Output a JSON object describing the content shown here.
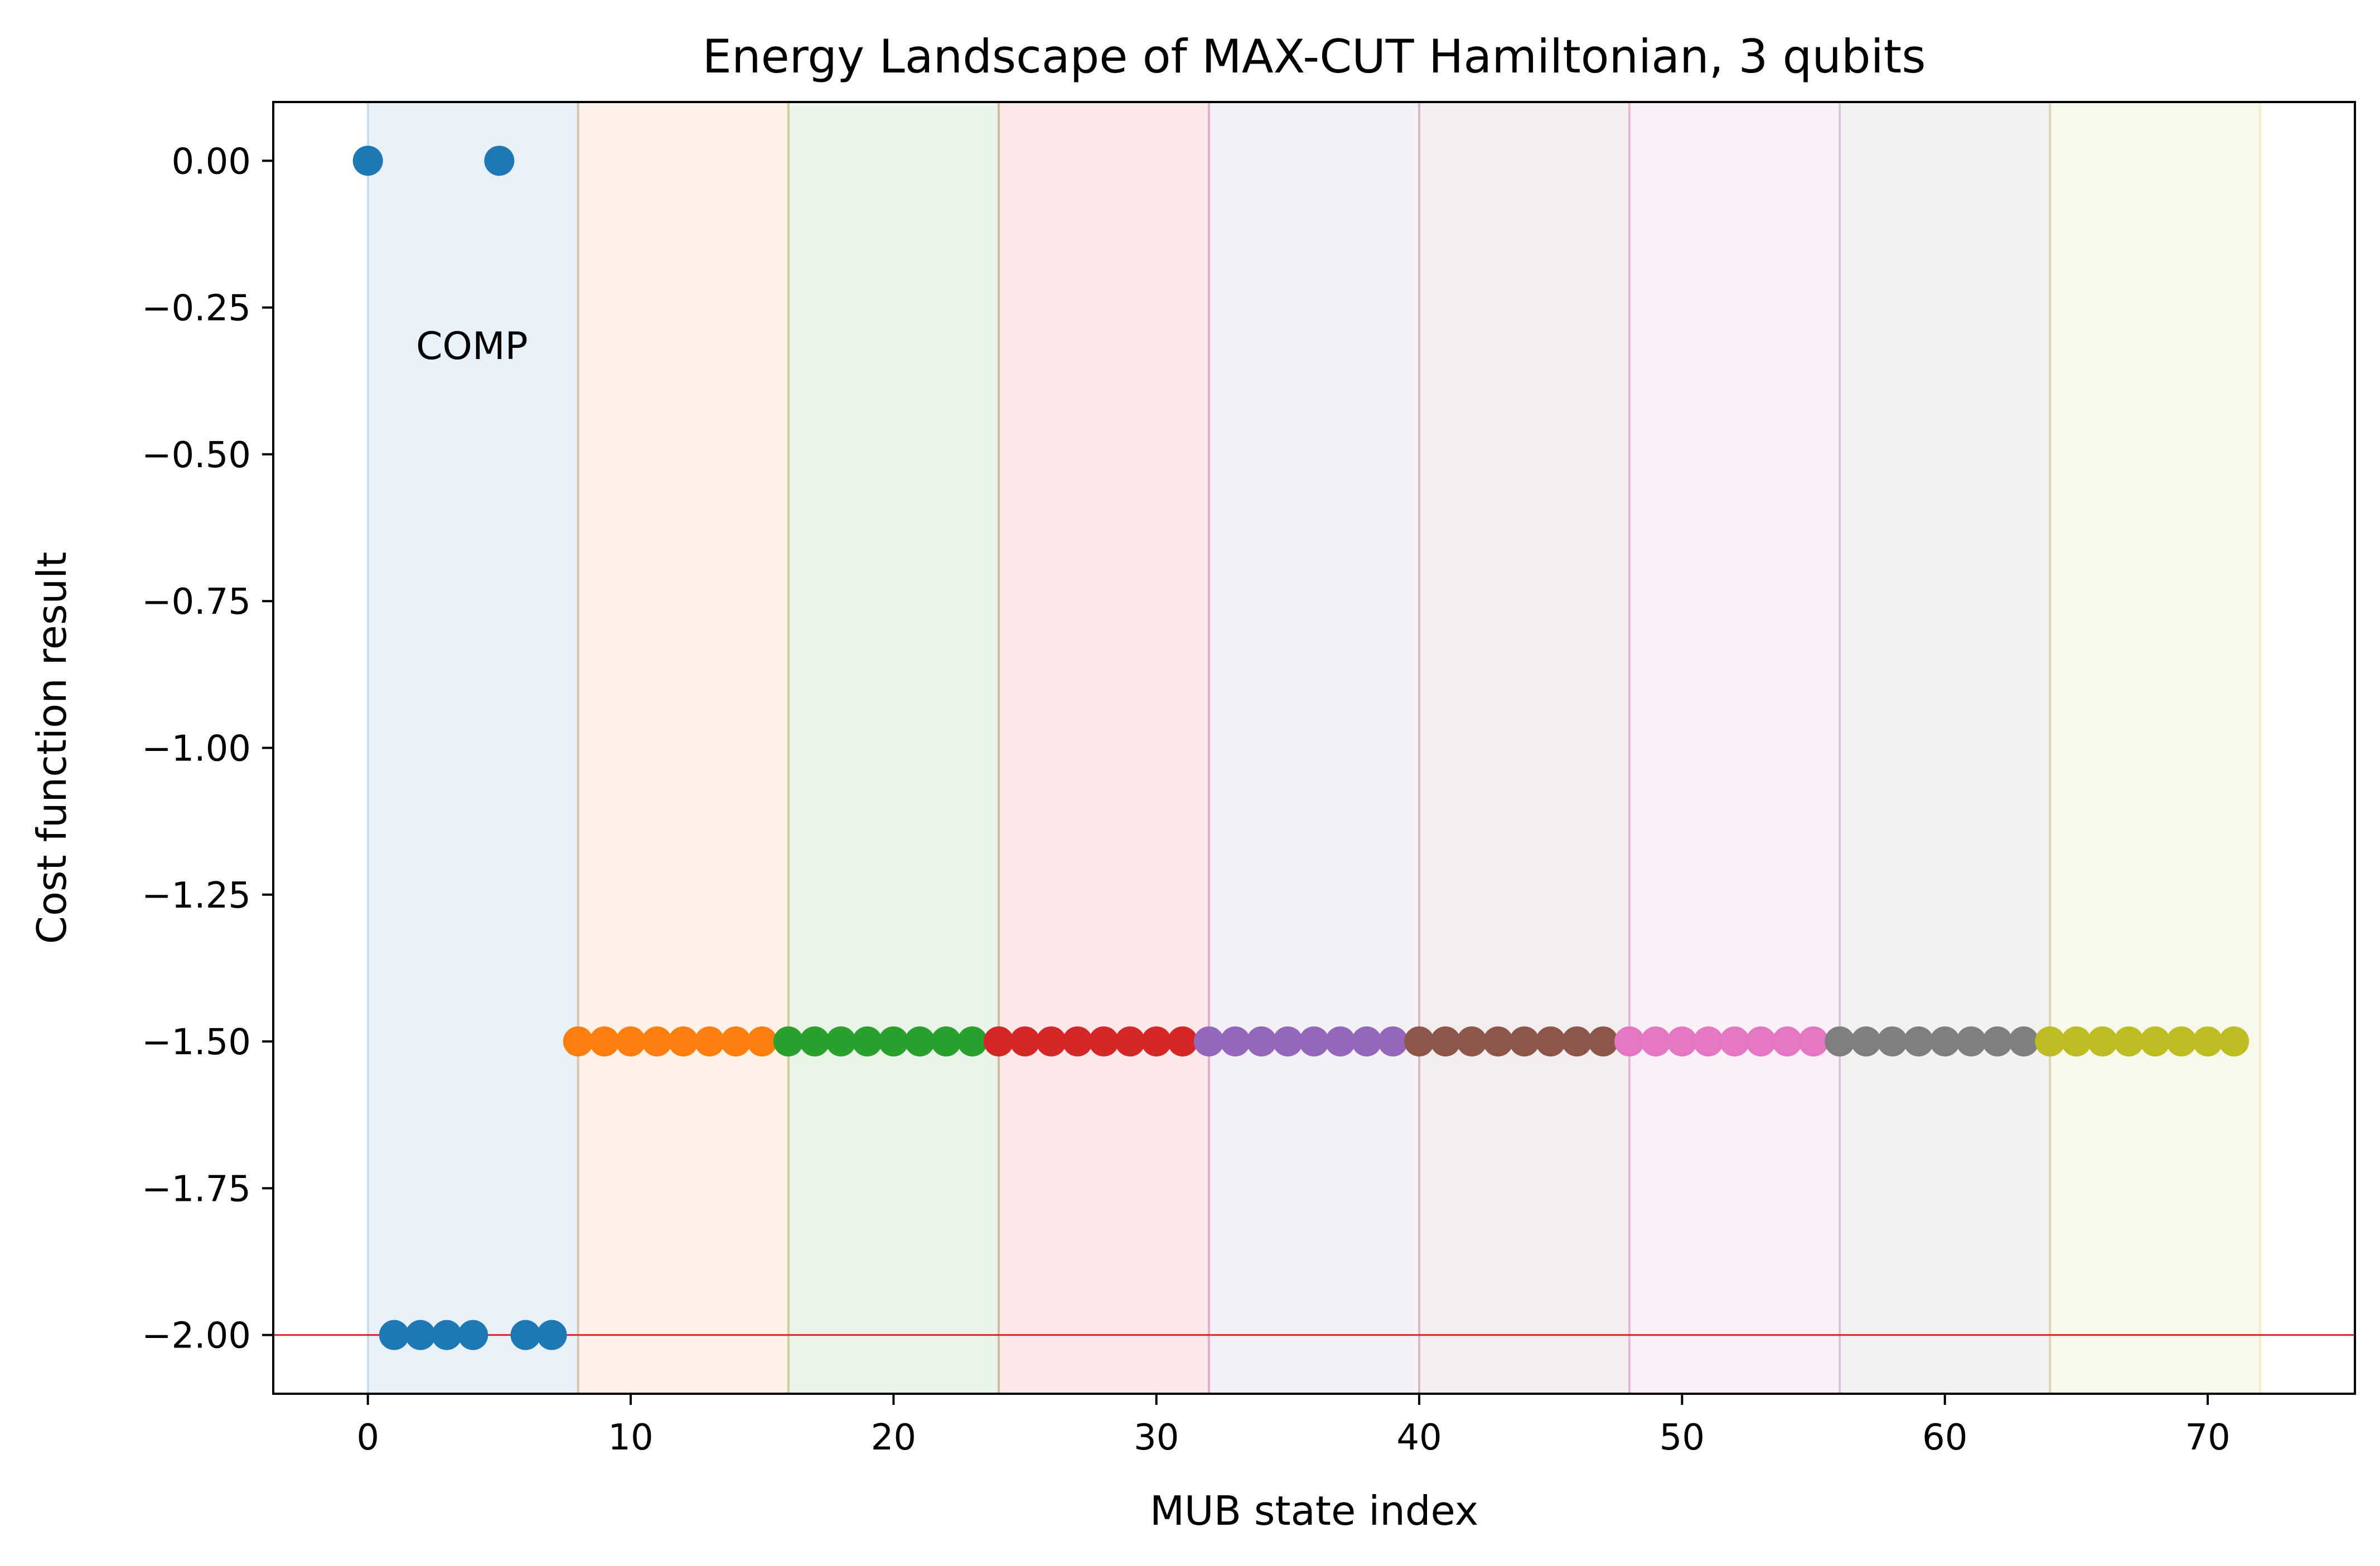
{
  "chart_data": {
    "type": "scatter",
    "title": "Energy Landscape of MAX-CUT Hamiltonian, 3 qubits",
    "xlabel": "MUB state index",
    "ylabel": "Cost function result",
    "xlim": [
      -3.6,
      75.6
    ],
    "ylim": [
      -2.1,
      0.1
    ],
    "xticks": [
      0,
      10,
      20,
      30,
      40,
      50,
      60,
      70
    ],
    "xtick_labels": [
      "0",
      "10",
      "20",
      "30",
      "40",
      "50",
      "60",
      "70"
    ],
    "yticks": [
      0.0,
      -0.25,
      -0.5,
      -0.75,
      -1.0,
      -1.25,
      -1.5,
      -1.75,
      -2.0
    ],
    "ytick_labels": [
      "0.00",
      "−0.25",
      "−0.50",
      "−0.75",
      "−1.00",
      "−1.25",
      "−1.50",
      "−1.75",
      "−2.00"
    ],
    "grid": false,
    "reference_line": {
      "y": -2.0,
      "color": "#d62728"
    },
    "annotations": [
      {
        "text": "COMP",
        "x": 2.0,
        "y": -0.315
      }
    ],
    "bands": [
      {
        "x0": 0,
        "x1": 8,
        "color": "#1f77b4"
      },
      {
        "x0": 8,
        "x1": 16,
        "color": "#ff7f0e"
      },
      {
        "x0": 16,
        "x1": 24,
        "color": "#2ca02c"
      },
      {
        "x0": 24,
        "x1": 32,
        "color": "#d62728"
      },
      {
        "x0": 32,
        "x1": 40,
        "color": "#9467bd"
      },
      {
        "x0": 40,
        "x1": 48,
        "color": "#8c564b"
      },
      {
        "x0": 48,
        "x1": 56,
        "color": "#e377c2"
      },
      {
        "x0": 56,
        "x1": 64,
        "color": "#7f7f7f"
      },
      {
        "x0": 64,
        "x1": 72,
        "color": "#bcbd22"
      }
    ],
    "series": [
      {
        "color": "#1f77b4",
        "x": [
          0,
          1,
          2,
          3,
          4,
          5,
          6,
          7
        ],
        "y": [
          0.0,
          -2.0,
          -2.0,
          -2.0,
          -2.0,
          0.0,
          -2.0,
          -2.0
        ]
      },
      {
        "color": "#ff7f0e",
        "x": [
          8,
          9,
          10,
          11,
          12,
          13,
          14,
          15
        ],
        "y": [
          -1.5,
          -1.5,
          -1.5,
          -1.5,
          -1.5,
          -1.5,
          -1.5,
          -1.5
        ]
      },
      {
        "color": "#2ca02c",
        "x": [
          16,
          17,
          18,
          19,
          20,
          21,
          22,
          23
        ],
        "y": [
          -1.5,
          -1.5,
          -1.5,
          -1.5,
          -1.5,
          -1.5,
          -1.5,
          -1.5
        ]
      },
      {
        "color": "#d62728",
        "x": [
          24,
          25,
          26,
          27,
          28,
          29,
          30,
          31
        ],
        "y": [
          -1.5,
          -1.5,
          -1.5,
          -1.5,
          -1.5,
          -1.5,
          -1.5,
          -1.5
        ]
      },
      {
        "color": "#9467bd",
        "x": [
          32,
          33,
          34,
          35,
          36,
          37,
          38,
          39
        ],
        "y": [
          -1.5,
          -1.5,
          -1.5,
          -1.5,
          -1.5,
          -1.5,
          -1.5,
          -1.5
        ]
      },
      {
        "color": "#8c564b",
        "x": [
          40,
          41,
          42,
          43,
          44,
          45,
          46,
          47
        ],
        "y": [
          -1.5,
          -1.5,
          -1.5,
          -1.5,
          -1.5,
          -1.5,
          -1.5,
          -1.5
        ]
      },
      {
        "color": "#e377c2",
        "x": [
          48,
          49,
          50,
          51,
          52,
          53,
          54,
          55
        ],
        "y": [
          -1.5,
          -1.5,
          -1.5,
          -1.5,
          -1.5,
          -1.5,
          -1.5,
          -1.5
        ]
      },
      {
        "color": "#7f7f7f",
        "x": [
          56,
          57,
          58,
          59,
          60,
          61,
          62,
          63
        ],
        "y": [
          -1.5,
          -1.5,
          -1.5,
          -1.5,
          -1.5,
          -1.5,
          -1.5,
          -1.5
        ]
      },
      {
        "color": "#bcbd22",
        "x": [
          64,
          65,
          66,
          67,
          68,
          69,
          70,
          71
        ],
        "y": [
          -1.5,
          -1.5,
          -1.5,
          -1.5,
          -1.5,
          -1.5,
          -1.5,
          -1.5
        ]
      }
    ]
  }
}
